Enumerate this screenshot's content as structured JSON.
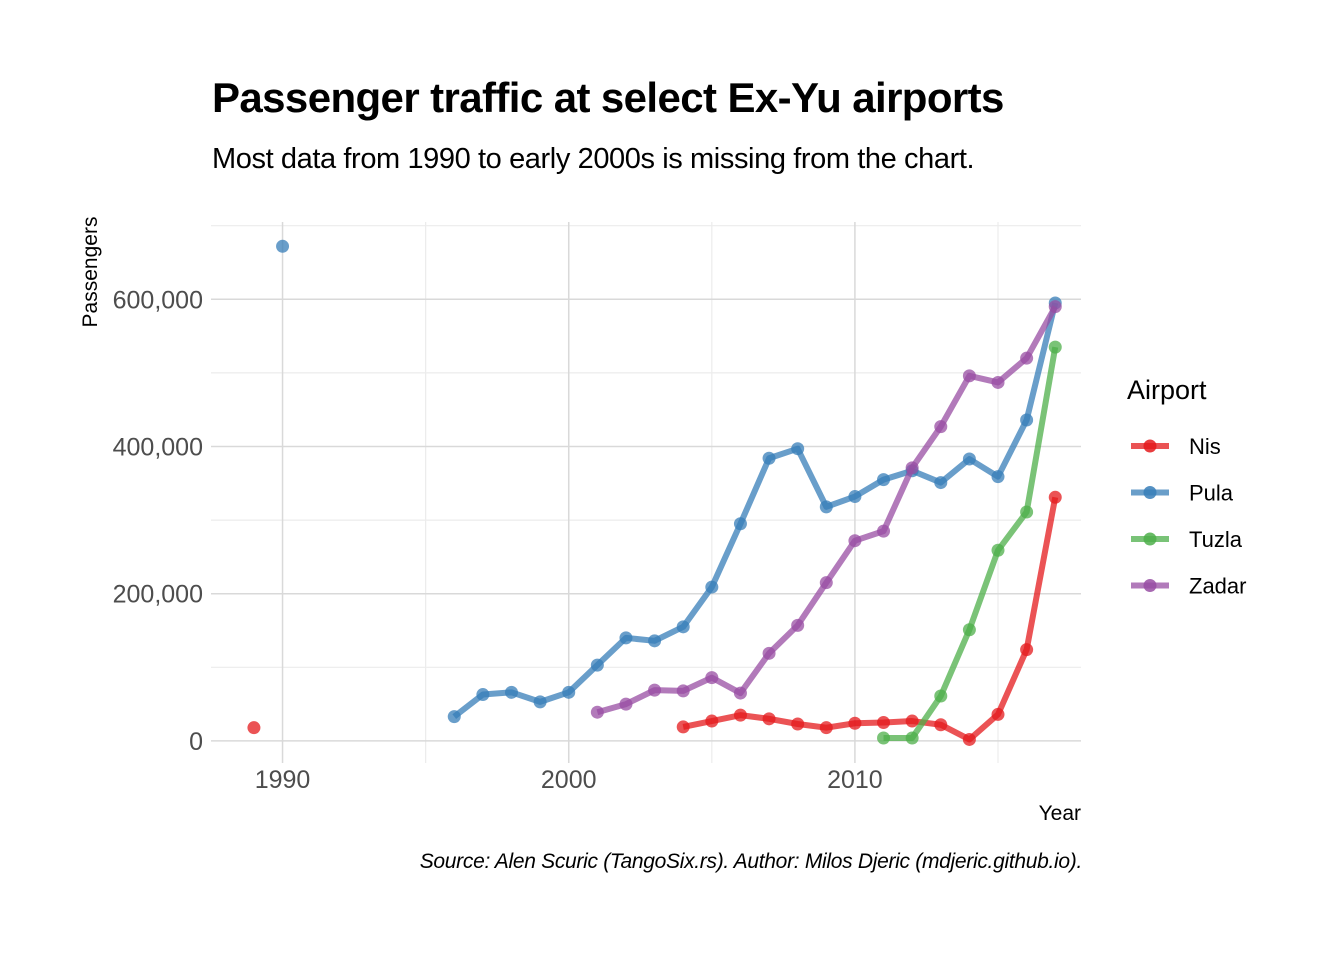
{
  "chart_data": {
    "type": "line",
    "title": "Passenger traffic at select Ex-Yu airports",
    "subtitle": "Most data from 1990 to early 2000s is missing from the chart.",
    "caption": "Source: Alen Scuric (TangoSix.rs). Author: Milos Djeric (mdjeric.github.io).",
    "xlabel": "Year",
    "ylabel": "Passengers",
    "xlim": [
      1987.5,
      2017.9
    ],
    "ylim": [
      -30000,
      705000
    ],
    "x_ticks": [
      {
        "value": 1990,
        "label": "1990"
      },
      {
        "value": 2000,
        "label": "2000"
      },
      {
        "value": 2010,
        "label": "2010"
      }
    ],
    "y_ticks": [
      {
        "value": 0,
        "label": "0"
      },
      {
        "value": 200000,
        "label": "200,000"
      },
      {
        "value": 400000,
        "label": "400,000"
      },
      {
        "value": 600000,
        "label": "600,000"
      }
    ],
    "legend": {
      "title": "Airport",
      "position": "right"
    },
    "series": [
      {
        "name": "Nis",
        "color": "#e41a1c",
        "points": [
          [
            1989,
            18000
          ],
          [
            2004,
            19000
          ],
          [
            2005,
            27000
          ],
          [
            2006,
            35000
          ],
          [
            2007,
            30000
          ],
          [
            2008,
            23000
          ],
          [
            2009,
            18000
          ],
          [
            2010,
            24000
          ],
          [
            2011,
            25000
          ],
          [
            2012,
            27000
          ],
          [
            2013,
            22000
          ],
          [
            2014,
            2000
          ],
          [
            2015,
            36000
          ],
          [
            2016,
            124000
          ],
          [
            2017,
            331000
          ]
        ]
      },
      {
        "name": "Pula",
        "color": "#377eb8",
        "points": [
          [
            1990,
            672000
          ],
          [
            1996,
            33000
          ],
          [
            1997,
            63000
          ],
          [
            1998,
            66000
          ],
          [
            1999,
            53000
          ],
          [
            2000,
            66000
          ],
          [
            2001,
            103000
          ],
          [
            2002,
            140000
          ],
          [
            2003,
            136000
          ],
          [
            2004,
            155000
          ],
          [
            2005,
            209000
          ],
          [
            2006,
            295000
          ],
          [
            2007,
            384000
          ],
          [
            2008,
            397000
          ],
          [
            2009,
            318000
          ],
          [
            2010,
            332000
          ],
          [
            2011,
            355000
          ],
          [
            2012,
            367000
          ],
          [
            2013,
            351000
          ],
          [
            2014,
            383000
          ],
          [
            2015,
            359000
          ],
          [
            2016,
            436000
          ],
          [
            2017,
            595000
          ]
        ]
      },
      {
        "name": "Tuzla",
        "color": "#4daf4a",
        "points": [
          [
            2011,
            4000
          ],
          [
            2012,
            4000
          ],
          [
            2013,
            61000
          ],
          [
            2014,
            151000
          ],
          [
            2015,
            259000
          ],
          [
            2016,
            311000
          ],
          [
            2017,
            535000
          ]
        ]
      },
      {
        "name": "Zadar",
        "color": "#984ea3",
        "points": [
          [
            2001,
            39000
          ],
          [
            2002,
            50000
          ],
          [
            2003,
            69000
          ],
          [
            2004,
            68000
          ],
          [
            2005,
            86000
          ],
          [
            2006,
            65000
          ],
          [
            2007,
            119000
          ],
          [
            2008,
            157000
          ],
          [
            2009,
            215000
          ],
          [
            2010,
            272000
          ],
          [
            2011,
            285000
          ],
          [
            2012,
            371000
          ],
          [
            2013,
            427000
          ],
          [
            2014,
            496000
          ],
          [
            2015,
            487000
          ],
          [
            2016,
            520000
          ],
          [
            2017,
            590000
          ]
        ]
      }
    ]
  }
}
